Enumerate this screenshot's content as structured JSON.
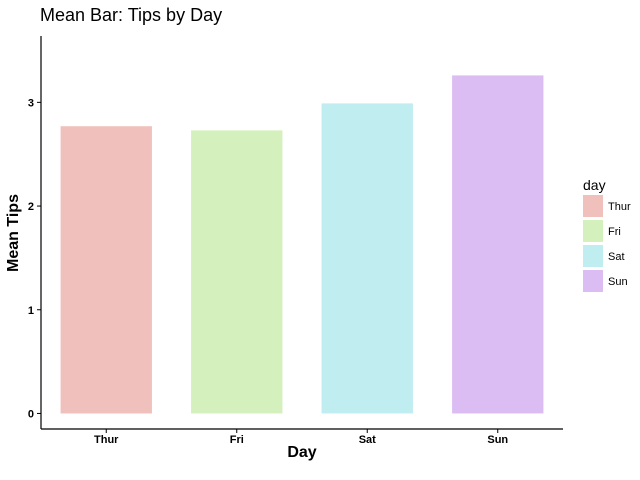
{
  "chart_data": {
    "type": "bar",
    "title": "Mean Bar: Tips by Day",
    "xlabel": "Day",
    "ylabel": "Mean Tips",
    "categories": [
      "Thur",
      "Fri",
      "Sat",
      "Sun"
    ],
    "values": [
      2.77,
      2.73,
      2.99,
      3.26
    ],
    "colors": [
      "#f0c0bc",
      "#d4f0bc",
      "#bfedf0",
      "#dbbdf3"
    ],
    "yticks": [
      0,
      1,
      2,
      3
    ],
    "ylim": [
      -0.15,
      3.64
    ],
    "grid": false,
    "legend": {
      "title": "day",
      "position": "right",
      "entries": [
        "Thur",
        "Fri",
        "Sat",
        "Sun"
      ]
    }
  }
}
